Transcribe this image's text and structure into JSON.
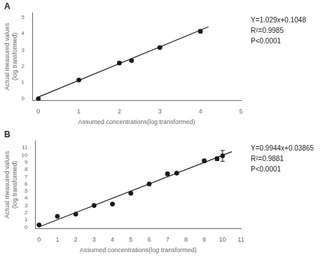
{
  "chart_data": [
    {
      "type": "scatter",
      "title": "A",
      "x_label": "Assumed concentrations(log transformed)",
      "y_label": "Actual measured values(log transformed)",
      "series": [
        {
          "type": "line",
          "x": [
            0,
            4.2
          ],
          "values": [
            0.1048,
            4.431
          ],
          "color": "#1a1a1a",
          "line_style": "solid"
        },
        {
          "type": "scatter",
          "x": [
            0,
            1,
            2,
            2.3,
            3,
            4
          ],
          "values": [
            0,
            1.15,
            2.2,
            2.35,
            3.15,
            4.15
          ],
          "errors": [
            0,
            0.05,
            0.08,
            0.06,
            0.05,
            0.1
          ],
          "color": "#1a1a1a",
          "marker": "circle"
        }
      ],
      "annotations": [
        "Y=1.029x+0.1048",
        "R²=0.9985",
        "P<0.0001"
      ],
      "xlim": [
        -0.15,
        5
      ],
      "ylim": [
        -0.1,
        5.3
      ],
      "xticks": [
        0,
        1,
        2,
        3,
        4,
        5
      ],
      "yticks": [
        0,
        1,
        2,
        3,
        4,
        5
      ],
      "grid": false
    },
    {
      "type": "scatter",
      "title": "B",
      "x_label": "Assumed concentrations(log transformed)",
      "y_label": "Actual measured values(log transformed)",
      "series": [
        {
          "type": "line",
          "x": [
            0,
            10.5
          ],
          "values": [
            0.03865,
            10.479
          ],
          "color": "#1a1a1a",
          "line_style": "solid"
        },
        {
          "type": "scatter",
          "x": [
            0,
            1,
            2,
            3,
            4,
            5,
            6,
            7,
            7.5,
            9,
            9.7,
            10
          ],
          "values": [
            0.3,
            1.5,
            1.8,
            3.0,
            3.2,
            4.7,
            6.0,
            7.4,
            7.5,
            9.2,
            9.5,
            9.9
          ],
          "errors": [
            0.05,
            0.08,
            0.08,
            0.1,
            0.1,
            0.1,
            0.1,
            0.2,
            0.15,
            0.25,
            0.25,
            0.75
          ],
          "color": "#1a1a1a",
          "marker": "circle"
        }
      ],
      "annotations": [
        "Y=0.9944x+0.03865",
        "R²=0.9881",
        "P<0.0001"
      ],
      "xlim": [
        -0.2,
        11
      ],
      "ylim": [
        -0.2,
        12
      ],
      "xticks": [
        0,
        1,
        2,
        3,
        4,
        5,
        6,
        7,
        8,
        9,
        10,
        11
      ],
      "yticks": [
        0,
        1,
        2,
        3,
        4,
        5,
        6,
        7,
        8,
        9,
        10,
        11
      ],
      "grid": false
    }
  ]
}
